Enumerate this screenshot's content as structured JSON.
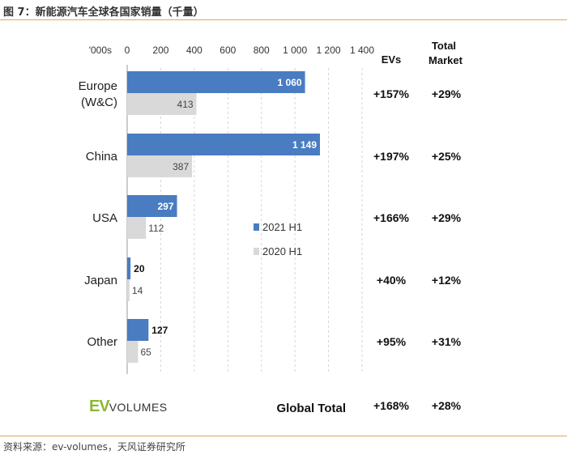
{
  "figure": {
    "title": "图 7：新能源汽车全球各国家销量（千量）",
    "source": "资料来源：ev-volumes，天风证券研究所"
  },
  "logo": {
    "ev": "EV",
    "volumes": "VOLUMES"
  },
  "colors": {
    "series_2021": "#4a7cc1",
    "series_2020": "#d9d9d9",
    "rule": "#e3a35b",
    "logo_green": "#8ab832"
  },
  "chart_data": {
    "type": "bar",
    "orientation": "horizontal",
    "unit_label": "'000s",
    "categories": [
      "Europe\n(W&C)",
      "China",
      "USA",
      "Japan",
      "Other"
    ],
    "series": [
      {
        "name": "2021 H1",
        "values": [
          1060,
          1149,
          297,
          20,
          127
        ],
        "labels": [
          "1 060",
          "1 149",
          "297",
          "20",
          "127"
        ]
      },
      {
        "name": "2020 H1",
        "values": [
          413,
          387,
          112,
          14,
          65
        ],
        "labels": [
          "413",
          "387",
          "112",
          "14",
          "65"
        ]
      }
    ],
    "xlim": [
      0,
      1400
    ],
    "xticks": [
      0,
      200,
      400,
      600,
      800,
      1000,
      1200,
      1400
    ],
    "xtick_labels": [
      "0",
      "200",
      "400",
      "600",
      "800",
      "1 000",
      "1 200",
      "1 400"
    ],
    "grid": "vertical-dashed",
    "legend_position": "center-right",
    "growth_columns": [
      {
        "header": "EVs",
        "values": [
          "+157%",
          "+197%",
          "+166%",
          "+40%",
          "+95%"
        ],
        "total": "+168%"
      },
      {
        "header": "Total\nMarket",
        "values": [
          "+29%",
          "+25%",
          "+29%",
          "+12%",
          "+31%"
        ],
        "total": "+28%"
      }
    ],
    "total_label": "Global Total"
  }
}
